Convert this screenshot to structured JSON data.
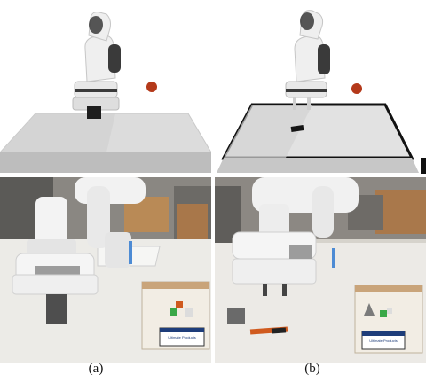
{
  "figure": {
    "caption_a": "(a)",
    "caption_b": "(b)"
  },
  "sim_scene": {
    "ball_color": "#b4391a",
    "table_color": "#dcdcdc",
    "robot_white": "#e8e8e8",
    "robot_dark": "#3a3a3a"
  },
  "real_scene": {
    "box_label_a": "Ultimate Products",
    "box_label_b": "Ultimate Products",
    "cube_colors": [
      "#d05a1e",
      "#3aa848"
    ]
  }
}
